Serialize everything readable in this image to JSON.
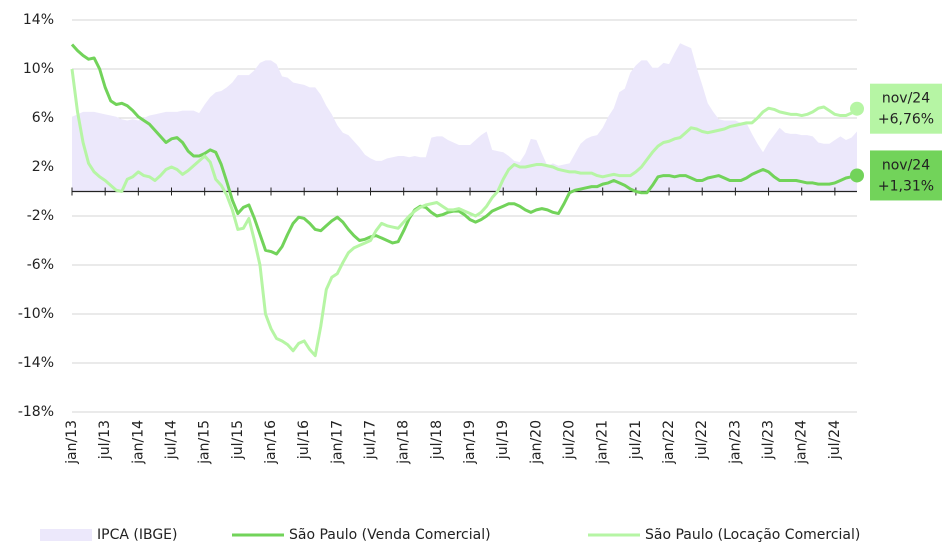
{
  "chart_data": {
    "type": "line",
    "categories": [
      "jan/13",
      null,
      null,
      null,
      null,
      null,
      "jul/13",
      null,
      null,
      null,
      null,
      null,
      "jan/14",
      null,
      null,
      null,
      null,
      null,
      "jul/14",
      null,
      null,
      null,
      null,
      null,
      "jan/15",
      null,
      null,
      null,
      null,
      null,
      "jul/15",
      null,
      null,
      null,
      null,
      null,
      "jan/16",
      null,
      null,
      null,
      null,
      null,
      "jul/16",
      null,
      null,
      null,
      null,
      null,
      "jan/17",
      null,
      null,
      null,
      null,
      null,
      "jul/17",
      null,
      null,
      null,
      null,
      null,
      "jan/18",
      null,
      null,
      null,
      null,
      null,
      "jul/18",
      null,
      null,
      null,
      null,
      null,
      "jan/19",
      null,
      null,
      null,
      null,
      null,
      "jul/19",
      null,
      null,
      null,
      null,
      null,
      "jan/20",
      null,
      null,
      null,
      null,
      null,
      "jul/20",
      null,
      null,
      null,
      null,
      null,
      "jan/21",
      null,
      null,
      null,
      null,
      null,
      "jul/21",
      null,
      null,
      null,
      null,
      null,
      "jan/22",
      null,
      null,
      null,
      null,
      null,
      "jul/22",
      null,
      null,
      null,
      null,
      null,
      "jan/23",
      null,
      null,
      null,
      null,
      null,
      "jul/23",
      null,
      null,
      null,
      null,
      null,
      "jan/24",
      null,
      null,
      null,
      null,
      null,
      "jul/24",
      null,
      null,
      null,
      null
    ],
    "series": [
      {
        "name": "IPCA (IBGE)",
        "color": "#ece8fb",
        "style": "area",
        "values": [
          6.1,
          6.3,
          6.5,
          6.5,
          6.5,
          6.4,
          6.3,
          6.2,
          6.1,
          5.9,
          5.8,
          5.9,
          5.8,
          6,
          6.2,
          6.3,
          6.4,
          6.5,
          6.5,
          6.5,
          6.6,
          6.6,
          6.6,
          6.4,
          7.1,
          7.7,
          8.1,
          8.2,
          8.5,
          8.9,
          9.5,
          9.5,
          9.5,
          9.9,
          10.5,
          10.7,
          10.7,
          10.4,
          9.4,
          9.3,
          8.9,
          8.8,
          8.7,
          8.5,
          8.5,
          7.9,
          7,
          6.3,
          5.4,
          4.8,
          4.6,
          4.1,
          3.6,
          3,
          2.7,
          2.5,
          2.5,
          2.7,
          2.8,
          2.9,
          2.9,
          2.8,
          2.9,
          2.8,
          2.8,
          4.4,
          4.5,
          4.5,
          4.2,
          4,
          3.8,
          3.8,
          3.8,
          4.2,
          4.6,
          4.9,
          3.4,
          3.3,
          3.2,
          2.9,
          2.5,
          2.4,
          3.1,
          4.3,
          4.2,
          3.1,
          2.1,
          2.3,
          2.1,
          2.2,
          2.3,
          3.1,
          3.9,
          4.3,
          4.5,
          4.6,
          5.2,
          6.1,
          6.8,
          8.1,
          8.4,
          9.7,
          10.3,
          10.7,
          10.7,
          10.1,
          10.1,
          10.5,
          10.4,
          11.3,
          12.1,
          11.9,
          11.7,
          10.1,
          8.7,
          7.2,
          6.5,
          5.9,
          5.8,
          5.8,
          5.8,
          5.6,
          5.6,
          4.7,
          3.9,
          3.2,
          4,
          4.6,
          5.2,
          4.8,
          4.7,
          4.7,
          4.6,
          4.6,
          4.5,
          4,
          3.9,
          3.9,
          4.2,
          4.5,
          4.2,
          4.4,
          4.9
        ]
      },
      {
        "name": "São Paulo (Venda Comercial)",
        "color": "#72d35a",
        "style": "line",
        "end_date": "nov/24",
        "end_label": "+1,31%",
        "values": [
          12,
          11.5,
          11.1,
          10.8,
          10.9,
          10,
          8.5,
          7.4,
          7.1,
          7.2,
          7,
          6.6,
          6.1,
          5.8,
          5.5,
          5,
          4.5,
          4,
          4.3,
          4.4,
          4,
          3.3,
          2.9,
          2.9,
          3.1,
          3.4,
          3.2,
          2.2,
          0.8,
          -0.7,
          -1.8,
          -1.3,
          -1.1,
          -2.2,
          -3.5,
          -4.8,
          -4.9,
          -5.1,
          -4.5,
          -3.5,
          -2.6,
          -2.1,
          -2.2,
          -2.6,
          -3.1,
          -3.2,
          -2.8,
          -2.4,
          -2.1,
          -2.5,
          -3.1,
          -3.6,
          -4,
          -3.9,
          -3.7,
          -3.6,
          -3.8,
          -4,
          -4.2,
          -4.1,
          -3.2,
          -2.2,
          -1.5,
          -1.2,
          -1.3,
          -1.7,
          -2,
          -1.9,
          -1.7,
          -1.6,
          -1.6,
          -1.9,
          -2.3,
          -2.5,
          -2.3,
          -2,
          -1.6,
          -1.4,
          -1.2,
          -1,
          -1,
          -1.2,
          -1.5,
          -1.7,
          -1.5,
          -1.4,
          -1.5,
          -1.7,
          -1.8,
          -1,
          -0.1,
          0.1,
          0.2,
          0.3,
          0.4,
          0.4,
          0.6,
          0.7,
          0.9,
          0.7,
          0.5,
          0.2,
          0,
          -0.1,
          -0.1,
          0.5,
          1.2,
          1.3,
          1.3,
          1.2,
          1.3,
          1.3,
          1.1,
          0.9,
          0.9,
          1.1,
          1.2,
          1.3,
          1.1,
          0.9,
          0.9,
          0.9,
          1.1,
          1.4,
          1.6,
          1.8,
          1.6,
          1.2,
          0.9,
          0.9,
          0.9,
          0.9,
          0.8,
          0.7,
          0.7,
          0.6,
          0.6,
          0.6,
          0.7,
          0.9,
          1.1,
          1.2,
          1.31
        ]
      },
      {
        "name": "São Paulo (Locação Comercial)",
        "color": "#b6f5a4",
        "style": "line",
        "end_date": "nov/24",
        "end_label": "+6,76%",
        "values": [
          10,
          6.5,
          4,
          2.3,
          1.6,
          1.2,
          0.9,
          0.5,
          0.1,
          0,
          1,
          1.2,
          1.6,
          1.3,
          1.2,
          0.9,
          1.3,
          1.8,
          2,
          1.8,
          1.4,
          1.7,
          2.1,
          2.5,
          2.9,
          2.4,
          1,
          0.5,
          -0.3,
          -1.5,
          -3.1,
          -3,
          -2.2,
          -4,
          -6,
          -10,
          -11.2,
          -12,
          -12.2,
          -12.5,
          -13,
          -12.4,
          -12.2,
          -12.9,
          -13.4,
          -11,
          -8,
          -7,
          -6.7,
          -5.8,
          -5,
          -4.6,
          -4.4,
          -4.2,
          -4,
          -3.2,
          -2.6,
          -2.8,
          -2.9,
          -3,
          -2.5,
          -2,
          -1.6,
          -1.3,
          -1.1,
          -1,
          -0.9,
          -1.2,
          -1.5,
          -1.5,
          -1.4,
          -1.6,
          -1.8,
          -2,
          -1.7,
          -1.2,
          -0.5,
          0,
          1,
          1.8,
          2.2,
          2,
          2,
          2.1,
          2.2,
          2.2,
          2.1,
          2,
          1.8,
          1.7,
          1.6,
          1.6,
          1.5,
          1.5,
          1.5,
          1.3,
          1.2,
          1.3,
          1.4,
          1.3,
          1.3,
          1.3,
          1.6,
          2,
          2.6,
          3.2,
          3.7,
          4,
          4.1,
          4.3,
          4.4,
          4.8,
          5.2,
          5.1,
          4.9,
          4.8,
          4.9,
          5,
          5.1,
          5.3,
          5.4,
          5.5,
          5.6,
          5.6,
          6,
          6.5,
          6.8,
          6.7,
          6.5,
          6.4,
          6.3,
          6.3,
          6.2,
          6.3,
          6.5,
          6.8,
          6.9,
          6.6,
          6.3,
          6.2,
          6.2,
          6.4,
          6.76
        ]
      }
    ],
    "ylim": [
      -18,
      14
    ],
    "yticks": [
      {
        "value": -18,
        "label": "-18%"
      },
      {
        "value": -14,
        "label": "-14%"
      },
      {
        "value": -10,
        "label": "-10%"
      },
      {
        "value": -6,
        "label": "-6%"
      },
      {
        "value": -2,
        "label": "-2%"
      },
      {
        "value": 2,
        "label": "2%"
      },
      {
        "value": 6,
        "label": "6%"
      },
      {
        "value": 10,
        "label": "10%"
      },
      {
        "value": 14,
        "label": "14%"
      }
    ],
    "grid": true
  }
}
